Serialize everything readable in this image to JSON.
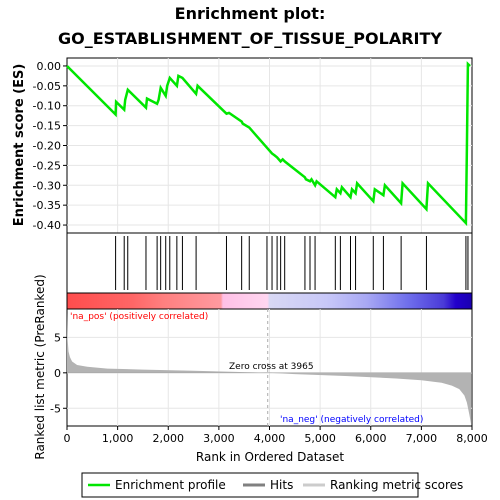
{
  "title_line1": "Enrichment plot:",
  "title_line2": "GO_ESTABLISHMENT_OF_TISSUE_POLARITY",
  "colors": {
    "enrichment": "#00e600",
    "hits": "#000000",
    "metric_fill": "#b3b3b3",
    "pos_text": "#ff0000",
    "neg_text": "#0000ff",
    "zero_line": "#aaaaaa"
  },
  "chart_data": [
    {
      "type": "line",
      "name": "enrichment-profile",
      "ylabel": "Enrichment score (ES)",
      "xlim": [
        0,
        8000
      ],
      "ylim": [
        -0.42,
        0.02
      ],
      "yticks": [
        "0.00",
        "-0.05",
        "-0.10",
        "-0.15",
        "-0.20",
        "-0.25",
        "-0.30",
        "-0.35",
        "-0.40"
      ],
      "ytick_values": [
        0,
        -0.05,
        -0.1,
        -0.15,
        -0.2,
        -0.25,
        -0.3,
        -0.35,
        -0.4
      ],
      "grid": true,
      "x": [
        0,
        960,
        970,
        1130,
        1150,
        1200,
        1560,
        1580,
        1780,
        1810,
        1850,
        1950,
        1980,
        2030,
        2170,
        2200,
        2280,
        2550,
        2580,
        3150,
        3200,
        3450,
        3470,
        3600,
        4050,
        4100,
        4150,
        4220,
        4260,
        4300,
        4700,
        4720,
        4800,
        4830,
        4900,
        4930,
        5300,
        5330,
        5400,
        5430,
        5600,
        5630,
        5700,
        5730,
        6050,
        6080,
        6250,
        6280,
        6600,
        6630,
        7100,
        7130,
        7880,
        7900,
        7920,
        7960
      ],
      "y": [
        0.0,
        -0.122,
        -0.09,
        -0.11,
        -0.085,
        -0.06,
        -0.105,
        -0.082,
        -0.095,
        -0.085,
        -0.055,
        -0.075,
        -0.05,
        -0.03,
        -0.05,
        -0.025,
        -0.03,
        -0.07,
        -0.05,
        -0.12,
        -0.118,
        -0.14,
        -0.145,
        -0.155,
        -0.22,
        -0.225,
        -0.23,
        -0.24,
        -0.235,
        -0.24,
        -0.28,
        -0.285,
        -0.29,
        -0.285,
        -0.3,
        -0.29,
        -0.33,
        -0.31,
        -0.32,
        -0.305,
        -0.33,
        -0.31,
        -0.32,
        -0.295,
        -0.34,
        -0.31,
        -0.325,
        -0.3,
        -0.345,
        -0.295,
        -0.36,
        -0.295,
        -0.395,
        -0.205,
        0.005,
        0.0
      ]
    },
    {
      "type": "scatter",
      "name": "hits",
      "legend": "Hits",
      "x": [
        960,
        1130,
        1200,
        1560,
        1780,
        1850,
        1950,
        2030,
        2170,
        2280,
        2550,
        3150,
        3450,
        3600,
        3950,
        4050,
        4150,
        4220,
        4300,
        4700,
        4800,
        4900,
        5300,
        5400,
        5600,
        5700,
        6050,
        6250,
        6600,
        7100,
        7880,
        7920
      ]
    },
    {
      "type": "area",
      "name": "ranking-metric",
      "ylabel": "Ranked list metric (PreRanked)",
      "xlabel": "Rank in Ordered Dataset",
      "xlim": [
        0,
        8000
      ],
      "xticks": [
        "0",
        "1,000",
        "2,000",
        "3,000",
        "4,000",
        "5,000",
        "6,000",
        "7,000",
        "8,000"
      ],
      "xtick_values": [
        0,
        1000,
        2000,
        3000,
        4000,
        5000,
        6000,
        7000,
        8000
      ],
      "ylim": [
        -7.5,
        9
      ],
      "yticks": [
        "5",
        "0",
        "-5"
      ],
      "ytick_values": [
        5,
        0,
        -5
      ],
      "zero_cross": 3965,
      "x": [
        0,
        10,
        30,
        60,
        100,
        200,
        400,
        800,
        1500,
        2500,
        3500,
        3965,
        4500,
        5500,
        6500,
        7000,
        7400,
        7600,
        7750,
        7850,
        7900,
        7950,
        7980
      ],
      "y": [
        8.5,
        5.0,
        3.0,
        2.2,
        1.6,
        1.1,
        0.85,
        0.6,
        0.45,
        0.28,
        0.1,
        0.0,
        -0.18,
        -0.45,
        -0.8,
        -1.05,
        -1.4,
        -1.8,
        -2.3,
        -3.2,
        -4.2,
        -6.0,
        -7.2
      ]
    }
  ],
  "annotations": {
    "pos": "'na_pos' (positively correlated)",
    "neg": "'na_neg' (negatively correlated)",
    "zero": "Zero cross at 3965"
  },
  "legend": {
    "enrichment": "Enrichment profile",
    "hits": "Hits",
    "metric": "Ranking metric scores"
  }
}
